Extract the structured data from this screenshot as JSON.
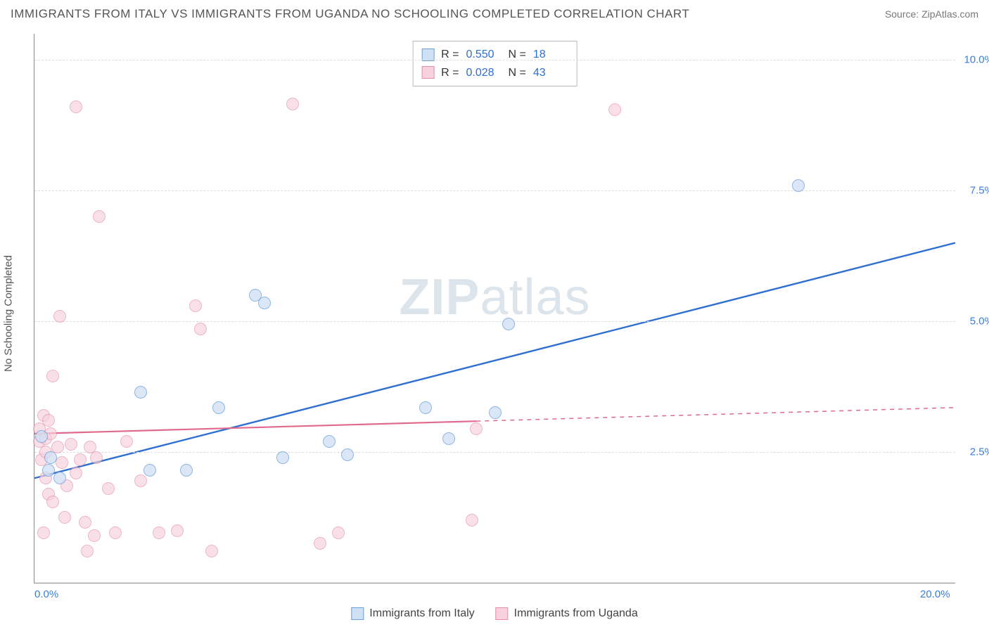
{
  "title": "IMMIGRANTS FROM ITALY VS IMMIGRANTS FROM UGANDA NO SCHOOLING COMPLETED CORRELATION CHART",
  "source": "Source: ZipAtlas.com",
  "watermark": {
    "zip": "ZIP",
    "atlas": "atlas"
  },
  "y_axis_title": "No Schooling Completed",
  "chart": {
    "type": "scatter",
    "xlim": [
      0,
      20
    ],
    "ylim": [
      0,
      10.5
    ],
    "x_ticks": [
      {
        "value": 0,
        "label": "0.0%"
      },
      {
        "value": 20,
        "label": "20.0%"
      }
    ],
    "y_ticks": [
      {
        "value": 2.5,
        "label": "2.5%"
      },
      {
        "value": 5.0,
        "label": "5.0%"
      },
      {
        "value": 7.5,
        "label": "7.5%"
      },
      {
        "value": 10.0,
        "label": "10.0%"
      }
    ],
    "x_tick_color": "#3b7dd8",
    "y_tick_color": "#3b7dd8",
    "grid_color": "#dddddd",
    "background_color": "#ffffff"
  },
  "series": [
    {
      "id": "italy",
      "label": "Immigrants from Italy",
      "fill": "#cfe0f5",
      "stroke": "#6a9fd8",
      "fill_opacity": 0.75,
      "marker_radius": 9,
      "stats": {
        "R": "0.550",
        "N": "18"
      },
      "stats_value_color": "#2e6fd0",
      "regression": {
        "x1": 0,
        "y1": 2.0,
        "x2": 20,
        "y2": 6.5,
        "stroke": "#2e6fd0",
        "width": 2.4,
        "dash_after_x": null
      },
      "points": [
        [
          0.15,
          2.8
        ],
        [
          0.3,
          2.15
        ],
        [
          0.35,
          2.4
        ],
        [
          0.55,
          2.0
        ],
        [
          2.3,
          3.65
        ],
        [
          2.5,
          2.15
        ],
        [
          3.3,
          2.15
        ],
        [
          4.0,
          3.35
        ],
        [
          4.8,
          5.5
        ],
        [
          5.0,
          5.35
        ],
        [
          5.4,
          2.4
        ],
        [
          6.4,
          2.7
        ],
        [
          6.8,
          2.45
        ],
        [
          8.5,
          3.35
        ],
        [
          9.0,
          2.75
        ],
        [
          10.0,
          3.25
        ],
        [
          10.3,
          4.95
        ],
        [
          16.6,
          7.6
        ]
      ]
    },
    {
      "id": "uganda",
      "label": "Immigrants from Uganda",
      "fill": "#f7d1dd",
      "stroke": "#e48fa9",
      "fill_opacity": 0.65,
      "marker_radius": 9,
      "stats": {
        "R": "0.028",
        "N": "43"
      },
      "stats_value_color": "#2e6fd0",
      "regression": {
        "x1": 0,
        "y1": 2.85,
        "x2": 20,
        "y2": 3.35,
        "stroke": "#e06a8c",
        "width": 2.2,
        "dash_after_x": 9.6
      },
      "points": [
        [
          0.1,
          2.7
        ],
        [
          0.1,
          2.95
        ],
        [
          0.15,
          2.35
        ],
        [
          0.2,
          3.2
        ],
        [
          0.2,
          0.95
        ],
        [
          0.25,
          2.5
        ],
        [
          0.25,
          2.0
        ],
        [
          0.25,
          2.75
        ],
        [
          0.3,
          3.1
        ],
        [
          0.3,
          1.7
        ],
        [
          0.35,
          2.85
        ],
        [
          0.4,
          1.55
        ],
        [
          0.4,
          3.95
        ],
        [
          0.5,
          2.6
        ],
        [
          0.55,
          5.1
        ],
        [
          0.6,
          2.3
        ],
        [
          0.65,
          1.25
        ],
        [
          0.7,
          1.85
        ],
        [
          0.8,
          2.65
        ],
        [
          0.9,
          2.1
        ],
        [
          0.9,
          9.1
        ],
        [
          1.0,
          2.35
        ],
        [
          1.1,
          1.15
        ],
        [
          1.15,
          0.6
        ],
        [
          1.2,
          2.6
        ],
        [
          1.3,
          0.9
        ],
        [
          1.35,
          2.4
        ],
        [
          1.4,
          7.0
        ],
        [
          1.6,
          1.8
        ],
        [
          1.75,
          0.95
        ],
        [
          2.0,
          2.7
        ],
        [
          2.3,
          1.95
        ],
        [
          2.7,
          0.95
        ],
        [
          3.1,
          1.0
        ],
        [
          3.5,
          5.3
        ],
        [
          3.6,
          4.85
        ],
        [
          3.85,
          0.6
        ],
        [
          5.6,
          9.15
        ],
        [
          6.2,
          0.75
        ],
        [
          6.6,
          0.95
        ],
        [
          9.5,
          1.2
        ],
        [
          9.6,
          2.95
        ],
        [
          12.6,
          9.05
        ]
      ]
    }
  ],
  "legend_swatches": {
    "italy": {
      "fill": "#cfe0f5",
      "stroke": "#6a9fd8"
    },
    "uganda": {
      "fill": "#f7d1dd",
      "stroke": "#e48fa9"
    }
  }
}
